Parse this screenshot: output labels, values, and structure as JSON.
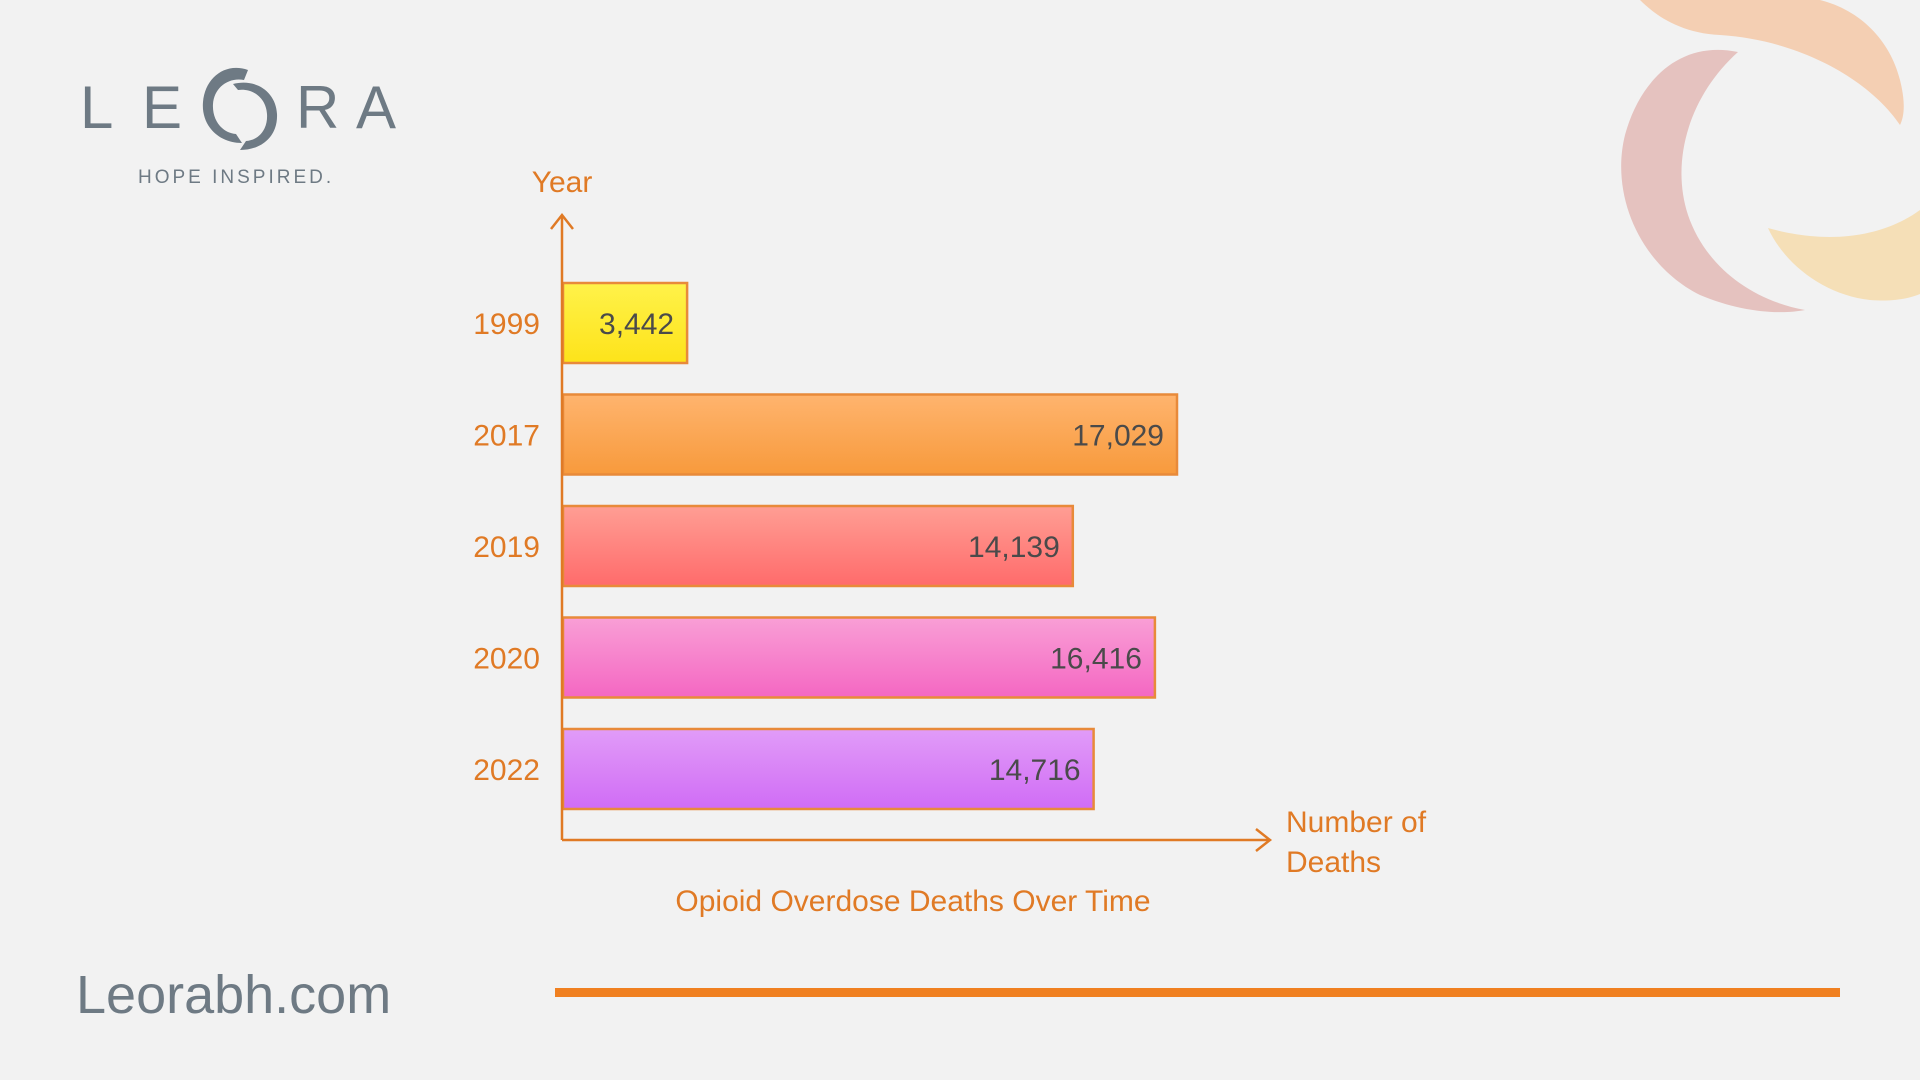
{
  "brand": {
    "logo_letters": [
      "L",
      "E",
      "O",
      "R",
      "A"
    ],
    "tagline": "HOPE INSPIRED.",
    "website": "Leorabh.com"
  },
  "colors": {
    "accent": "#f08020",
    "axis": "#e07a25",
    "brand_gray": "#6e7a84",
    "bar_text": "#4a4a4a"
  },
  "chart_data": {
    "type": "bar",
    "orientation": "horizontal",
    "title": "Opioid Overdose Deaths Over Time",
    "xlabel": [
      "Number of",
      "Deaths"
    ],
    "ylabel": "Year",
    "grid": false,
    "categories": [
      "1999",
      "2017",
      "2019",
      "2020",
      "2022"
    ],
    "values": [
      3442,
      17029,
      14139,
      16416,
      14716
    ],
    "value_labels": [
      "3,442",
      "17,029",
      "14,139",
      "16,416",
      "14,716"
    ],
    "bar_colors": [
      [
        "#fff24a",
        "#fde31a"
      ],
      [
        "#ffb46e",
        "#f79a3c"
      ],
      [
        "#ff9e94",
        "#ff6b6b"
      ],
      [
        "#f99fd6",
        "#f467c2"
      ],
      [
        "#e19cf8",
        "#d06cf5"
      ]
    ],
    "bar_border_color": "#e88a3a"
  }
}
